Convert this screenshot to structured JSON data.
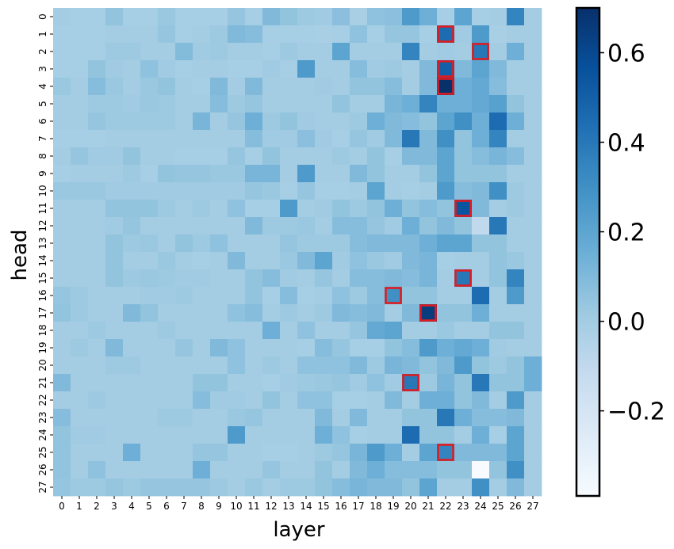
{
  "chart_data": {
    "type": "heatmap",
    "xlabel": "layer",
    "ylabel": "head",
    "x_categories": [
      "0",
      "1",
      "2",
      "3",
      "4",
      "5",
      "6",
      "7",
      "8",
      "9",
      "10",
      "11",
      "12",
      "13",
      "14",
      "15",
      "16",
      "17",
      "18",
      "19",
      "20",
      "21",
      "22",
      "23",
      "24",
      "25",
      "26",
      "27"
    ],
    "y_categories": [
      "0",
      "1",
      "2",
      "3",
      "4",
      "5",
      "6",
      "7",
      "8",
      "9",
      "10",
      "11",
      "12",
      "13",
      "14",
      "15",
      "16",
      "17",
      "18",
      "19",
      "20",
      "21",
      "22",
      "23",
      "24",
      "25",
      "26",
      "27"
    ],
    "colormap": "Blues",
    "vmin": -0.39,
    "vmax": 0.7,
    "colorbar": {
      "ticks": [
        -0.2,
        0.0,
        0.2,
        0.4,
        0.6
      ],
      "tick_labels": [
        "−0.2",
        "0.0",
        "0.2",
        "0.4",
        "0.6"
      ]
    },
    "values": [
      [
        0.0,
        -0.01,
        -0.01,
        0.05,
        -0.01,
        -0.01,
        0.03,
        -0.01,
        -0.01,
        -0.01,
        0.04,
        -0.01,
        0.1,
        0.05,
        0.02,
        0.01,
        0.07,
        -0.02,
        0.06,
        0.07,
        0.25,
        0.15,
        -0.01,
        0.2,
        -0.01,
        0.0,
        0.35,
        0.0
      ],
      [
        -0.01,
        -0.01,
        -0.01,
        0.0,
        0.0,
        0.0,
        0.04,
        -0.01,
        0.0,
        0.02,
        0.1,
        0.08,
        -0.01,
        -0.01,
        -0.01,
        -0.02,
        -0.01,
        0.06,
        -0.01,
        0.04,
        0.04,
        -0.01,
        0.45,
        0.01,
        0.25,
        -0.02,
        0.0,
        0.0
      ],
      [
        -0.01,
        -0.01,
        -0.01,
        0.02,
        0.02,
        0.0,
        0.0,
        0.09,
        0.01,
        0.02,
        0.0,
        0.0,
        -0.01,
        0.02,
        0.0,
        0.0,
        0.2,
        0.0,
        0.0,
        0.0,
        0.35,
        0.0,
        0.01,
        0.0,
        0.4,
        0.0,
        0.15,
        0.0
      ],
      [
        -0.01,
        -0.01,
        0.05,
        0.01,
        0.0,
        0.06,
        0.01,
        -0.01,
        0.0,
        0.0,
        -0.01,
        -0.01,
        0.01,
        -0.01,
        0.25,
        0.0,
        0.0,
        0.08,
        0.01,
        0.02,
        0.0,
        0.1,
        0.5,
        0.1,
        0.2,
        0.1,
        0.0,
        0.0
      ],
      [
        0.03,
        0.0,
        0.08,
        0.03,
        0.0,
        0.03,
        0.05,
        0.0,
        -0.01,
        0.1,
        0.0,
        0.1,
        0.0,
        0.0,
        0.0,
        0.01,
        0.0,
        0.05,
        0.05,
        0.08,
        0.0,
        0.1,
        0.7,
        0.15,
        0.18,
        0.08,
        0.0,
        0.0
      ],
      [
        0.0,
        0.0,
        0.02,
        0.02,
        0.01,
        0.03,
        0.02,
        0.0,
        0.0,
        0.08,
        0.02,
        0.04,
        0.0,
        0.0,
        0.0,
        0.0,
        0.05,
        0.0,
        0.0,
        0.12,
        0.15,
        0.35,
        0.15,
        0.15,
        0.18,
        0.22,
        0.05,
        0.0
      ],
      [
        0.0,
        0.0,
        0.04,
        0.02,
        0.02,
        0.02,
        0.02,
        0.0,
        0.12,
        0.0,
        0.04,
        0.15,
        0.02,
        0.05,
        0.01,
        0.0,
        0.0,
        0.02,
        0.15,
        0.1,
        0.08,
        0.05,
        0.2,
        0.3,
        0.15,
        0.45,
        0.15,
        0.0
      ],
      [
        -0.01,
        -0.01,
        -0.01,
        0.0,
        0.0,
        0.0,
        0.0,
        0.0,
        0.0,
        0.0,
        0.0,
        0.08,
        0.01,
        0.01,
        0.07,
        0.01,
        -0.01,
        0.04,
        0.01,
        0.1,
        0.4,
        0.1,
        0.3,
        0.05,
        0.15,
        0.35,
        0.0,
        0.0
      ],
      [
        0.0,
        0.04,
        0.01,
        0.01,
        0.05,
        0.0,
        0.0,
        -0.01,
        -0.01,
        -0.01,
        0.04,
        -0.01,
        0.05,
        0.0,
        0.0,
        0.0,
        0.02,
        0.0,
        0.05,
        -0.01,
        0.1,
        0.1,
        0.2,
        0.05,
        0.08,
        0.12,
        0.08,
        0.0
      ],
      [
        -0.01,
        0.0,
        0.0,
        0.0,
        0.02,
        -0.01,
        0.05,
        0.04,
        0.04,
        0.03,
        0.03,
        0.12,
        0.12,
        0.0,
        0.25,
        0.0,
        0.0,
        0.1,
        0.05,
        0.0,
        0.0,
        0.05,
        0.2,
        0.05,
        0.05,
        0.05,
        0.0,
        0.0
      ],
      [
        0.03,
        0.03,
        0.03,
        0.01,
        0.01,
        0.01,
        0.01,
        0.01,
        0.01,
        0.01,
        0.01,
        0.04,
        0.03,
        -0.01,
        0.04,
        -0.01,
        -0.01,
        0.0,
        0.2,
        0.0,
        -0.01,
        0.0,
        0.25,
        0.08,
        0.1,
        0.3,
        0.02,
        0.0
      ],
      [
        0.0,
        0.0,
        0.0,
        0.05,
        0.05,
        0.05,
        0.02,
        0.0,
        0.02,
        0.0,
        0.06,
        -0.01,
        -0.01,
        0.25,
        0.0,
        0.01,
        0.05,
        0.02,
        0.05,
        0.15,
        0.05,
        0.08,
        0.05,
        0.55,
        0.1,
        0.0,
        0.02,
        0.0
      ],
      [
        0.0,
        0.0,
        0.0,
        0.01,
        0.04,
        0.0,
        0.0,
        0.0,
        0.0,
        0.0,
        0.0,
        0.1,
        0.02,
        0.02,
        0.03,
        0.0,
        0.08,
        0.08,
        0.04,
        0.01,
        0.15,
        0.05,
        0.1,
        0.05,
        -0.1,
        0.4,
        0.0,
        0.0
      ],
      [
        0.0,
        0.0,
        0.0,
        0.05,
        0.02,
        0.03,
        0.0,
        0.05,
        0.02,
        0.06,
        0.0,
        0.0,
        0.0,
        0.04,
        0.02,
        0.02,
        0.02,
        0.08,
        0.1,
        0.1,
        0.1,
        0.15,
        0.2,
        0.2,
        0.05,
        0.05,
        0.0,
        0.0
      ],
      [
        0.0,
        0.0,
        0.0,
        0.05,
        0.0,
        0.0,
        0.03,
        0.0,
        -0.01,
        0.0,
        0.1,
        0.0,
        0.0,
        0.03,
        0.1,
        0.2,
        0.01,
        0.06,
        0.03,
        0.01,
        0.1,
        0.12,
        -0.01,
        0.0,
        0.0,
        0.05,
        0.03,
        0.0
      ],
      [
        0.0,
        0.0,
        0.0,
        0.05,
        0.02,
        0.03,
        0.02,
        0.01,
        0.01,
        0.0,
        0.0,
        0.05,
        0.08,
        0.01,
        0.0,
        0.04,
        0.0,
        0.08,
        0.08,
        0.1,
        0.08,
        0.12,
        0.0,
        0.4,
        0.0,
        0.05,
        0.35,
        0.0
      ],
      [
        0.04,
        0.02,
        0.0,
        0.0,
        0.0,
        0.01,
        0.01,
        0.02,
        0.0,
        0.0,
        0.0,
        0.05,
        -0.01,
        0.08,
        -0.01,
        0.0,
        0.06,
        0.02,
        0.08,
        0.3,
        0.05,
        0.05,
        0.0,
        0.0,
        0.45,
        0.0,
        0.25,
        0.0
      ],
      [
        0.05,
        0.02,
        0.0,
        0.0,
        0.1,
        0.05,
        0.0,
        0.0,
        0.0,
        0.0,
        0.06,
        0.08,
        0.0,
        0.02,
        0.0,
        0.02,
        0.1,
        0.08,
        0.1,
        0.0,
        0.1,
        0.65,
        0.05,
        0.05,
        0.15,
        0.0,
        0.0,
        0.0
      ],
      [
        0.0,
        0.0,
        0.02,
        0.0,
        0.0,
        0.0,
        0.02,
        0.0,
        0.0,
        0.0,
        0.0,
        0.0,
        0.15,
        0.0,
        0.06,
        0.0,
        0.0,
        0.04,
        0.18,
        0.2,
        0.0,
        0.0,
        0.03,
        0.0,
        0.0,
        0.05,
        0.05,
        0.0
      ],
      [
        0.0,
        0.02,
        0.0,
        0.1,
        0.0,
        0.0,
        0.0,
        0.04,
        0.0,
        0.1,
        0.06,
        0.0,
        0.0,
        0.0,
        -0.01,
        0.08,
        0.04,
        -0.01,
        -0.01,
        0.05,
        0.08,
        0.25,
        0.15,
        0.18,
        0.15,
        0.01,
        0.0,
        0.0
      ],
      [
        0.0,
        0.0,
        0.0,
        0.02,
        0.02,
        0.0,
        0.0,
        0.0,
        0.0,
        0.0,
        0.06,
        0.0,
        0.02,
        0.0,
        0.06,
        0.06,
        0.06,
        0.1,
        0.02,
        0.12,
        0.1,
        0.05,
        0.1,
        0.25,
        0.05,
        0.02,
        0.05,
        0.15
      ],
      [
        0.1,
        0.0,
        0.0,
        0.0,
        0.0,
        0.0,
        0.0,
        0.0,
        0.05,
        0.05,
        0.0,
        0.0,
        -0.01,
        0.01,
        0.02,
        0.03,
        0.04,
        0.01,
        0.06,
        0.01,
        0.4,
        0.02,
        0.12,
        0.05,
        0.4,
        0.05,
        0.05,
        0.15
      ],
      [
        0.0,
        0.0,
        0.02,
        0.0,
        0.0,
        0.0,
        0.0,
        0.0,
        0.08,
        0.01,
        0.01,
        0.0,
        0.05,
        0.0,
        0.06,
        0.06,
        -0.01,
        -0.01,
        0.0,
        0.1,
        0.0,
        0.15,
        0.15,
        0.05,
        0.1,
        0.0,
        0.25,
        0.0
      ],
      [
        0.08,
        0.0,
        0.0,
        0.0,
        0.0,
        0.0,
        0.02,
        0.02,
        0.0,
        0.0,
        0.03,
        0.04,
        0.0,
        0.0,
        0.0,
        0.1,
        0.0,
        0.1,
        0.0,
        0.0,
        0.05,
        0.05,
        0.4,
        0.15,
        0.08,
        0.08,
        0.1,
        0.0
      ],
      [
        0.05,
        0.01,
        0.01,
        0.0,
        0.0,
        0.0,
        0.0,
        0.0,
        0.0,
        0.0,
        0.25,
        0.0,
        0.0,
        0.0,
        0.0,
        0.15,
        0.06,
        -0.01,
        0.0,
        0.0,
        0.45,
        0.05,
        0.05,
        0.0,
        0.15,
        -0.01,
        0.2,
        0.0
      ],
      [
        0.05,
        0.0,
        0.0,
        0.0,
        0.15,
        0.0,
        0.0,
        0.0,
        0.04,
        0.04,
        0.0,
        0.0,
        -0.01,
        -0.01,
        0.0,
        0.02,
        0.04,
        0.12,
        0.25,
        0.15,
        0.0,
        0.2,
        0.35,
        0.1,
        0.1,
        0.1,
        0.2,
        0.0
      ],
      [
        0.05,
        0.0,
        0.06,
        0.0,
        0.0,
        0.0,
        0.0,
        0.0,
        0.15,
        0.0,
        0.0,
        0.0,
        0.04,
        0.0,
        0.0,
        0.05,
        0.0,
        0.1,
        0.15,
        0.08,
        0.08,
        0.08,
        0.05,
        0.05,
        -0.39,
        0.05,
        0.3,
        0.0
      ],
      [
        0.04,
        0.02,
        0.02,
        0.04,
        0.02,
        0.04,
        0.04,
        0.04,
        0.04,
        0.02,
        0.0,
        0.03,
        0.0,
        0.02,
        0.02,
        0.05,
        0.08,
        0.12,
        0.1,
        0.1,
        0.05,
        0.2,
        0.0,
        0.0,
        0.3,
        0.0,
        0.1,
        0.0
      ]
    ],
    "highlighted_cells": [
      {
        "layer": 22,
        "head": 1
      },
      {
        "layer": 24,
        "head": 2
      },
      {
        "layer": 22,
        "head": 3
      },
      {
        "layer": 22,
        "head": 4
      },
      {
        "layer": 23,
        "head": 11
      },
      {
        "layer": 23,
        "head": 15
      },
      {
        "layer": 19,
        "head": 16
      },
      {
        "layer": 21,
        "head": 17
      },
      {
        "layer": 20,
        "head": 21
      },
      {
        "layer": 22,
        "head": 25
      }
    ],
    "highlight_color": "#e41a1c",
    "grid": false,
    "legend": "colorbar-right"
  }
}
